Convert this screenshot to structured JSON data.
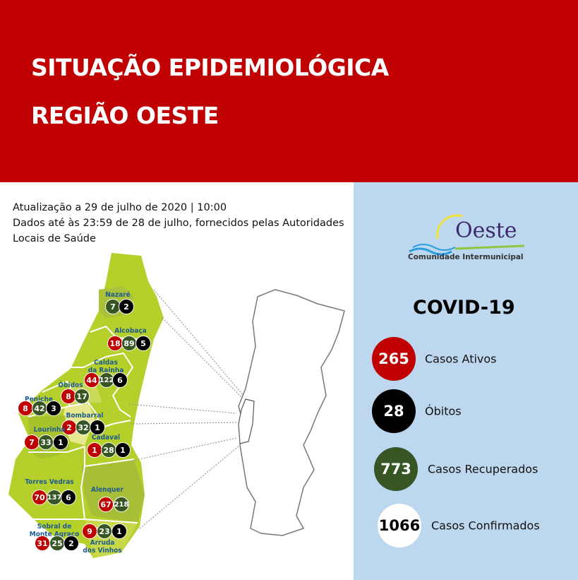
{
  "header": {
    "line1": "SITUAÇÃO EPIDEMIOLÓGICA",
    "line2": "REGIÃO OESTE"
  },
  "info": {
    "line1": "Atualização a 29 de julho de 2020 | 10:00",
    "line2": "Dados até às 23:59 de 28 de julho, fornecidos pelas Autoridades",
    "line3": "Locais de Saúde"
  },
  "logo": {
    "name": "Oeste",
    "subtitle": "Comunidade Intermunicipal"
  },
  "summary": {
    "title": "COVID-19",
    "items": [
      {
        "value": "265",
        "label": "Casos Ativos",
        "color": "#c00000"
      },
      {
        "value": "28",
        "label": "Óbitos",
        "color": "#000000"
      },
      {
        "value": "773",
        "label": "Casos Recuperados",
        "color": "#375623"
      },
      {
        "value": "1066",
        "label": "Casos Confirmados",
        "color": "#ffffff"
      }
    ]
  },
  "colors": {
    "header": "#c00000",
    "panel": "#bdd7ee",
    "active": "#c00000",
    "recovered": "#375623",
    "deaths": "#000000",
    "map": "#b5cf2b"
  },
  "municipalities": [
    {
      "name": "Nazaré",
      "active": null,
      "recovered": "7",
      "deaths": "2"
    },
    {
      "name": "Alcobaça",
      "active": "18",
      "recovered": "89",
      "deaths": "5"
    },
    {
      "name": "Caldas\nda Rainha",
      "active": "44",
      "recovered": "122",
      "deaths": "6"
    },
    {
      "name": "Óbidos",
      "active": "8",
      "recovered": "17",
      "deaths": null
    },
    {
      "name": "Peniche",
      "active": "8",
      "recovered": "42",
      "deaths": "3"
    },
    {
      "name": "Bombarral",
      "active": "2",
      "recovered": "32",
      "deaths": "1"
    },
    {
      "name": "Lourinhã",
      "active": "7",
      "recovered": "33",
      "deaths": "1"
    },
    {
      "name": "Cadaval",
      "active": "1",
      "recovered": "28",
      "deaths": "1"
    },
    {
      "name": "Torres Vedras",
      "active": "70",
      "recovered": "137",
      "deaths": "6"
    },
    {
      "name": "Alenquer",
      "active": "67",
      "recovered": "218",
      "deaths": null
    },
    {
      "name": "Sobral de\nMonte Agraço",
      "active": "31",
      "recovered": "25",
      "deaths": "2"
    },
    {
      "name": "Arruda\ndos Vinhos",
      "active": "9",
      "recovered": "23",
      "deaths": "1"
    }
  ]
}
